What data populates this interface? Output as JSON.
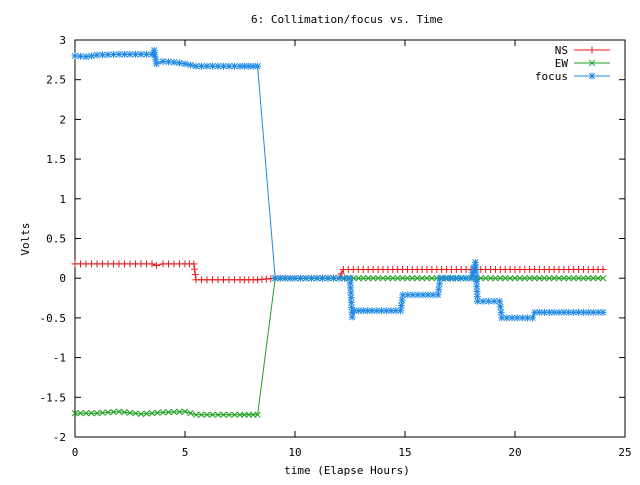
{
  "chart_data": {
    "type": "line",
    "title": "6: Collimation/focus vs. Time",
    "xlabel": "time (Elapse Hours)",
    "ylabel": "Volts",
    "xlim": [
      0,
      25
    ],
    "ylim": [
      -2,
      3
    ],
    "xticks": [
      0,
      5,
      10,
      15,
      20,
      25
    ],
    "xtick_labels": [
      "0",
      "5",
      "10",
      "15",
      "20",
      "25"
    ],
    "yticks": [
      -2,
      -1.5,
      -1,
      -0.5,
      0,
      0.5,
      1,
      1.5,
      2,
      2.5,
      3
    ],
    "ytick_labels": [
      "-2",
      "-1.5",
      "-1",
      "-0.5",
      "0",
      "0.5",
      "1",
      "1.5",
      "2",
      "2.5",
      "3"
    ],
    "grid": false,
    "legend_position": "top-right",
    "series": [
      {
        "name": "NS",
        "color": "#e41a1c",
        "marker": "plus",
        "points": [
          [
            0.0,
            0.18
          ],
          [
            1.0,
            0.18
          ],
          [
            2.0,
            0.18
          ],
          [
            3.0,
            0.18
          ],
          [
            3.5,
            0.18
          ],
          [
            3.7,
            0.16
          ],
          [
            4.0,
            0.18
          ],
          [
            5.0,
            0.18
          ],
          [
            5.4,
            0.18
          ],
          [
            5.5,
            -0.02
          ],
          [
            6.5,
            -0.02
          ],
          [
            7.5,
            -0.02
          ],
          [
            8.3,
            -0.02
          ],
          [
            9.1,
            0.0
          ],
          [
            10.0,
            0.0
          ],
          [
            11.0,
            0.0
          ],
          [
            12.0,
            0.0
          ],
          [
            12.2,
            0.11
          ],
          [
            14.0,
            0.11
          ],
          [
            16.0,
            0.11
          ],
          [
            18.0,
            0.11
          ],
          [
            20.0,
            0.11
          ],
          [
            22.0,
            0.11
          ],
          [
            24.0,
            0.11
          ]
        ]
      },
      {
        "name": "EW",
        "color": "#1ea01e",
        "marker": "cross",
        "points": [
          [
            0.0,
            -1.7
          ],
          [
            1.0,
            -1.7
          ],
          [
            2.0,
            -1.68
          ],
          [
            3.0,
            -1.71
          ],
          [
            4.0,
            -1.69
          ],
          [
            5.0,
            -1.68
          ],
          [
            5.5,
            -1.72
          ],
          [
            6.5,
            -1.72
          ],
          [
            7.5,
            -1.72
          ],
          [
            8.3,
            -1.72
          ],
          [
            9.1,
            0.0
          ],
          [
            10.0,
            0.0
          ],
          [
            11.0,
            0.0
          ],
          [
            12.0,
            0.0
          ],
          [
            14.0,
            0.0
          ],
          [
            16.0,
            0.0
          ],
          [
            18.0,
            0.0
          ],
          [
            20.0,
            0.0
          ],
          [
            22.0,
            0.0
          ],
          [
            24.0,
            0.0
          ]
        ]
      },
      {
        "name": "focus",
        "color": "#1e88e5",
        "marker": "star",
        "points": [
          [
            0.0,
            2.8
          ],
          [
            0.5,
            2.79
          ],
          [
            1.0,
            2.81
          ],
          [
            2.0,
            2.82
          ],
          [
            3.0,
            2.82
          ],
          [
            3.5,
            2.82
          ],
          [
            3.6,
            2.87
          ],
          [
            3.7,
            2.7
          ],
          [
            4.0,
            2.73
          ],
          [
            4.5,
            2.72
          ],
          [
            5.0,
            2.7
          ],
          [
            5.5,
            2.67
          ],
          [
            6.5,
            2.67
          ],
          [
            7.5,
            2.67
          ],
          [
            8.3,
            2.67
          ],
          [
            9.1,
            0.0
          ],
          [
            10.0,
            0.0
          ],
          [
            11.0,
            0.0
          ],
          [
            12.0,
            0.0
          ],
          [
            12.5,
            0.0
          ],
          [
            12.6,
            -0.49
          ],
          [
            12.7,
            -0.41
          ],
          [
            13.5,
            -0.41
          ],
          [
            14.8,
            -0.41
          ],
          [
            14.9,
            -0.21
          ],
          [
            16.5,
            -0.21
          ],
          [
            16.6,
            0.0
          ],
          [
            18.0,
            0.0
          ],
          [
            18.2,
            0.2
          ],
          [
            18.3,
            -0.29
          ],
          [
            19.3,
            -0.29
          ],
          [
            19.4,
            -0.5
          ],
          [
            20.8,
            -0.5
          ],
          [
            20.9,
            -0.43
          ],
          [
            22.0,
            -0.43
          ],
          [
            24.0,
            -0.43
          ]
        ]
      }
    ]
  }
}
